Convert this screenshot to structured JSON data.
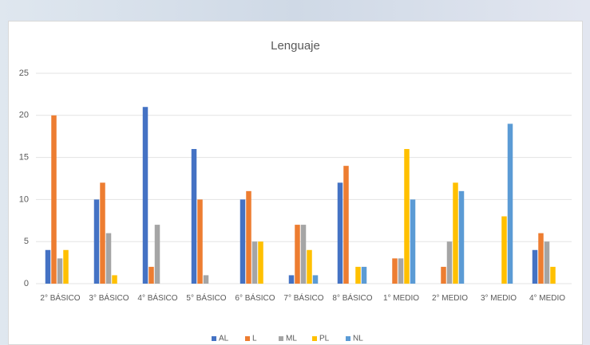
{
  "chart_data": {
    "type": "bar",
    "title": "Lenguaje",
    "categories": [
      "2° BÁSICO",
      "3° BÁSICO",
      "4° BÁSICO",
      "5° BÁSICO",
      "6° BÁSICO",
      "7° BÁSICO",
      "8° BÁSICO",
      "1° MEDIO",
      "2° MEDIO",
      "3° MEDIO",
      "4° MEDIO"
    ],
    "series": [
      {
        "name": "AL",
        "color": "#4472c4",
        "values": [
          4,
          10,
          21,
          16,
          10,
          1,
          12,
          0,
          0,
          0,
          4
        ]
      },
      {
        "name": "L",
        "color": "#ed7d31",
        "values": [
          20,
          12,
          2,
          10,
          11,
          7,
          14,
          3,
          2,
          0,
          6
        ]
      },
      {
        "name": "ML",
        "color": "#a5a5a5",
        "values": [
          3,
          6,
          7,
          1,
          5,
          7,
          0,
          3,
          5,
          0,
          5
        ]
      },
      {
        "name": "PL",
        "color": "#ffc000",
        "values": [
          4,
          1,
          0,
          0,
          5,
          4,
          2,
          16,
          12,
          8,
          2
        ]
      },
      {
        "name": "NL",
        "color": "#5b9bd5",
        "values": [
          0,
          0,
          0,
          0,
          0,
          1,
          2,
          10,
          11,
          19,
          0
        ]
      }
    ],
    "ylim": [
      0,
      25
    ],
    "yticks": [
      0,
      5,
      10,
      15,
      20,
      25
    ],
    "grid": true,
    "legend": "bottom"
  }
}
